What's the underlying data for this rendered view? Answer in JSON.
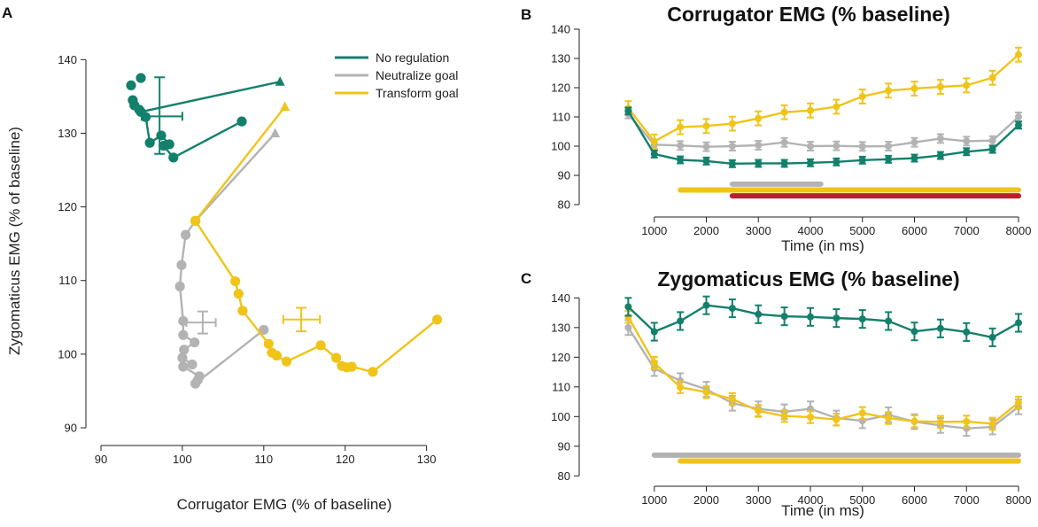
{
  "colors": {
    "no_regulation": "#13806b",
    "neutralize": "#b3b3b3",
    "transform": "#f0c419",
    "significance_red": "#b9202e",
    "axis": "#222222"
  },
  "legend": {
    "items": [
      {
        "key": "no_regulation",
        "label": "No regulation"
      },
      {
        "key": "neutralize",
        "label": "Neutralize goal"
      },
      {
        "key": "transform",
        "label": "Transform goal"
      }
    ]
  },
  "chart_data": [
    {
      "panel": "A",
      "type": "scatter",
      "title": "",
      "xlabel": "Corrugator EMG (% of baseline)",
      "ylabel": "Zygomaticus EMG (% of baseline)",
      "xlim": [
        90,
        132
      ],
      "ylim": [
        90,
        141
      ],
      "xticks": [
        "90",
        "100",
        "110",
        "120",
        "130"
      ],
      "yticks": [
        "90",
        "100",
        "110",
        "120",
        "130",
        "140"
      ],
      "series": [
        {
          "name": "No regulation",
          "key": "no_regulation",
          "points": [
            [
              112.0,
              137.0
            ],
            [
              93.7,
              136.5
            ],
            [
              94.9,
              137.5
            ],
            [
              93.9,
              134.5
            ],
            [
              94.1,
              133.8
            ],
            [
              94.7,
              133.2
            ],
            [
              94.9,
              132.9
            ],
            [
              95.5,
              132.2
            ],
            [
              96.0,
              128.7
            ],
            [
              97.4,
              129.7
            ],
            [
              98.4,
              128.5
            ],
            [
              97.7,
              128.3
            ],
            [
              98.9,
              126.7
            ],
            [
              107.3,
              131.6
            ]
          ],
          "path": [
            [
              112.0,
              137.0
            ],
            [
              94.9,
              132.9
            ],
            [
              95.5,
              132.2
            ],
            [
              96.0,
              128.7
            ],
            [
              97.4,
              129.7
            ],
            [
              98.4,
              128.5
            ],
            [
              97.7,
              128.3
            ],
            [
              98.9,
              126.7
            ],
            [
              107.3,
              131.6
            ]
          ],
          "errorbar": {
            "x": 97.2,
            "y": 132.3,
            "xerr": [
              95.0,
              100.0
            ],
            "yerr": [
              127.2,
              137.6
            ]
          }
        },
        {
          "name": "Neutralize goal",
          "key": "neutralize",
          "points": [
            [
              111.4,
              130.0
            ],
            [
              101.6,
              118.1
            ],
            [
              100.4,
              116.2
            ],
            [
              99.9,
              112.1
            ],
            [
              99.7,
              109.2
            ],
            [
              100.1,
              104.5
            ],
            [
              100.1,
              102.6
            ],
            [
              101.5,
              101.6
            ],
            [
              100.2,
              100.6
            ],
            [
              100.0,
              99.5
            ],
            [
              101.2,
              98.6
            ],
            [
              100.1,
              98.3
            ],
            [
              102.1,
              97.0
            ],
            [
              101.9,
              96.5
            ],
            [
              101.6,
              96.0
            ],
            [
              110.0,
              103.3
            ]
          ],
          "path": [
            [
              111.4,
              130.0
            ],
            [
              101.6,
              118.1
            ],
            [
              100.4,
              116.2
            ],
            [
              99.9,
              112.1
            ],
            [
              99.7,
              109.2
            ],
            [
              100.1,
              104.5
            ],
            [
              100.1,
              102.6
            ],
            [
              101.5,
              101.6
            ],
            [
              100.2,
              100.6
            ],
            [
              100.0,
              99.5
            ],
            [
              101.2,
              98.6
            ],
            [
              100.1,
              98.3
            ],
            [
              102.1,
              97.0
            ],
            [
              101.9,
              96.5
            ],
            [
              101.6,
              96.0
            ],
            [
              110.0,
              103.3
            ]
          ],
          "errorbar": {
            "x": 102.5,
            "y": 104.3,
            "xerr": [
              100.5,
              104.1
            ],
            "yerr": [
              102.8,
              105.8
            ]
          }
        },
        {
          "name": "Transform goal",
          "key": "transform",
          "points": [
            [
              112.6,
              133.6
            ],
            [
              101.6,
              118.1
            ],
            [
              106.5,
              109.9
            ],
            [
              106.9,
              108.2
            ],
            [
              107.4,
              105.9
            ],
            [
              110.6,
              101.4
            ],
            [
              111.0,
              100.2
            ],
            [
              111.6,
              99.8
            ],
            [
              112.8,
              99.0
            ],
            [
              117.0,
              101.2
            ],
            [
              118.9,
              99.5
            ],
            [
              119.6,
              98.4
            ],
            [
              120.2,
              98.2
            ],
            [
              120.8,
              98.3
            ],
            [
              123.4,
              97.6
            ],
            [
              131.3,
              104.7
            ]
          ],
          "path": [
            [
              112.6,
              133.6
            ],
            [
              101.6,
              118.1
            ],
            [
              106.5,
              109.9
            ],
            [
              106.9,
              108.2
            ],
            [
              107.4,
              105.9
            ],
            [
              110.6,
              101.4
            ],
            [
              111.0,
              100.2
            ],
            [
              111.6,
              99.8
            ],
            [
              112.8,
              99.0
            ],
            [
              117.0,
              101.2
            ],
            [
              118.9,
              99.5
            ],
            [
              119.6,
              98.4
            ],
            [
              120.2,
              98.2
            ],
            [
              120.8,
              98.3
            ],
            [
              123.4,
              97.6
            ],
            [
              131.3,
              104.7
            ]
          ],
          "errorbar": {
            "x": 114.6,
            "y": 104.7,
            "xerr": [
              112.4,
              116.9
            ],
            "yerr": [
              103.1,
              106.3
            ]
          }
        }
      ]
    },
    {
      "panel": "B",
      "type": "line",
      "title": "Corrugator EMG (% baseline)",
      "xlabel": "Time (in ms)",
      "ylabel": "",
      "xlim": [
        0,
        8000
      ],
      "ylim": [
        80,
        140
      ],
      "xticks": [
        "1000",
        "2000",
        "3000",
        "4000",
        "5000",
        "6000",
        "7000",
        "8000"
      ],
      "yticks": [
        "80",
        "90",
        "100",
        "110",
        "120",
        "130",
        "140"
      ],
      "x": [
        500,
        1000,
        1500,
        2000,
        2500,
        3000,
        3500,
        4000,
        4500,
        5000,
        5500,
        6000,
        6500,
        7000,
        7500,
        8000
      ],
      "series": [
        {
          "name": "No regulation",
          "key": "no_regulation",
          "values": [
            112.0,
            97.3,
            95.3,
            94.9,
            94.0,
            94.1,
            94.1,
            94.3,
            94.6,
            95.2,
            95.5,
            95.9,
            96.8,
            98.1,
            98.9,
            107.2
          ],
          "err": 1.2
        },
        {
          "name": "Neutralize goal",
          "key": "neutralize",
          "values": [
            111.0,
            100.5,
            100.2,
            99.8,
            100.0,
            100.3,
            101.3,
            100.0,
            100.1,
            99.9,
            100.0,
            101.3,
            102.6,
            101.7,
            101.9,
            110.0
          ],
          "err": 1.5
        },
        {
          "name": "Transform goal",
          "key": "transform",
          "values": [
            113.0,
            101.6,
            106.5,
            106.9,
            107.7,
            109.5,
            111.6,
            112.2,
            113.5,
            117.0,
            119.0,
            119.7,
            120.3,
            120.8,
            123.4,
            131.3
          ],
          "err": 2.4
        }
      ],
      "significance_bars": [
        {
          "key": "neutralize",
          "from": 2500,
          "to": 4200,
          "y": 87.0
        },
        {
          "key": "transform",
          "from": 1500,
          "to": 8000,
          "y": 85.0
        },
        {
          "key": "significance_red",
          "from": 2500,
          "to": 8000,
          "y": 83.0
        }
      ]
    },
    {
      "panel": "C",
      "type": "line",
      "title": "Zygomaticus EMG (% baseline)",
      "xlabel": "Time (in ms)",
      "ylabel": "",
      "xlim": [
        0,
        8000
      ],
      "ylim": [
        78,
        141
      ],
      "xticks": [
        "1000",
        "2000",
        "3000",
        "4000",
        "5000",
        "6000",
        "7000",
        "8000"
      ],
      "yticks": [
        "80",
        "90",
        "100",
        "110",
        "120",
        "130",
        "140"
      ],
      "x": [
        500,
        1000,
        1500,
        2000,
        2500,
        3000,
        3500,
        4000,
        4500,
        5000,
        5500,
        6000,
        6500,
        7000,
        7500,
        8000
      ],
      "series": [
        {
          "name": "No regulation",
          "key": "no_regulation",
          "values": [
            137.0,
            128.6,
            132.2,
            137.5,
            136.5,
            134.5,
            133.8,
            133.6,
            133.2,
            132.9,
            132.2,
            128.7,
            129.7,
            128.5,
            126.7,
            131.6
          ],
          "err": 3.0
        },
        {
          "name": "Neutralize goal",
          "key": "neutralize",
          "values": [
            130.0,
            116.2,
            112.1,
            109.2,
            104.5,
            102.6,
            101.6,
            102.6,
            99.5,
            98.6,
            100.6,
            98.3,
            97.0,
            96.0,
            96.5,
            103.3
          ],
          "err": 2.5
        },
        {
          "name": "Transform goal",
          "key": "transform",
          "values": [
            133.6,
            118.1,
            109.9,
            108.2,
            105.9,
            101.9,
            100.2,
            99.8,
            99.0,
            101.2,
            99.5,
            98.4,
            98.2,
            98.3,
            97.6,
            104.7
          ],
          "err": 2.0
        }
      ],
      "significance_bars": [
        {
          "key": "neutralize",
          "from": 1000,
          "to": 8000,
          "y": 87.0
        },
        {
          "key": "transform",
          "from": 1500,
          "to": 8000,
          "y": 85.0
        }
      ]
    }
  ]
}
